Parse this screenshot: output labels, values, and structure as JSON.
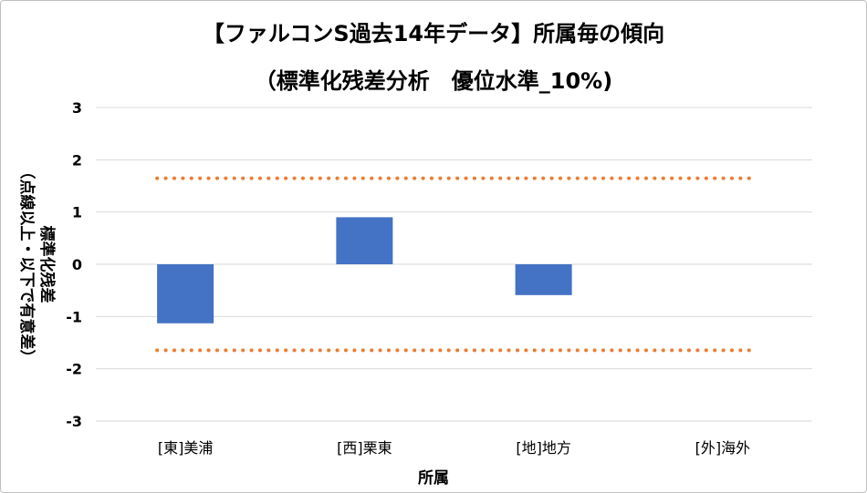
{
  "chart_data": {
    "type": "bar",
    "title": [
      "【ファルコンS過去14年データ】所属毎の傾向",
      "（標準化残差分析　優位水準_10%)"
    ],
    "categories": [
      "[東]美浦",
      "[西]栗東",
      "[地]地方",
      "[外]海外"
    ],
    "series": [
      {
        "values": [
          -1.13,
          0.9,
          -0.59,
          0
        ]
      }
    ],
    "thresholds": [
      1.645,
      -1.645
    ],
    "xlabel": "所属",
    "ylabel": [
      "標準化残差",
      "（点線以上・以下で有意差）"
    ],
    "ylim": [
      -3,
      3
    ],
    "yticks": [
      "3",
      "2",
      "1",
      "0",
      "-1",
      "-2",
      "-3"
    ],
    "grid": true,
    "colors": {
      "bar": "#4472c4",
      "threshold": "#ed7d31",
      "grid": "#d9d9d9"
    }
  }
}
